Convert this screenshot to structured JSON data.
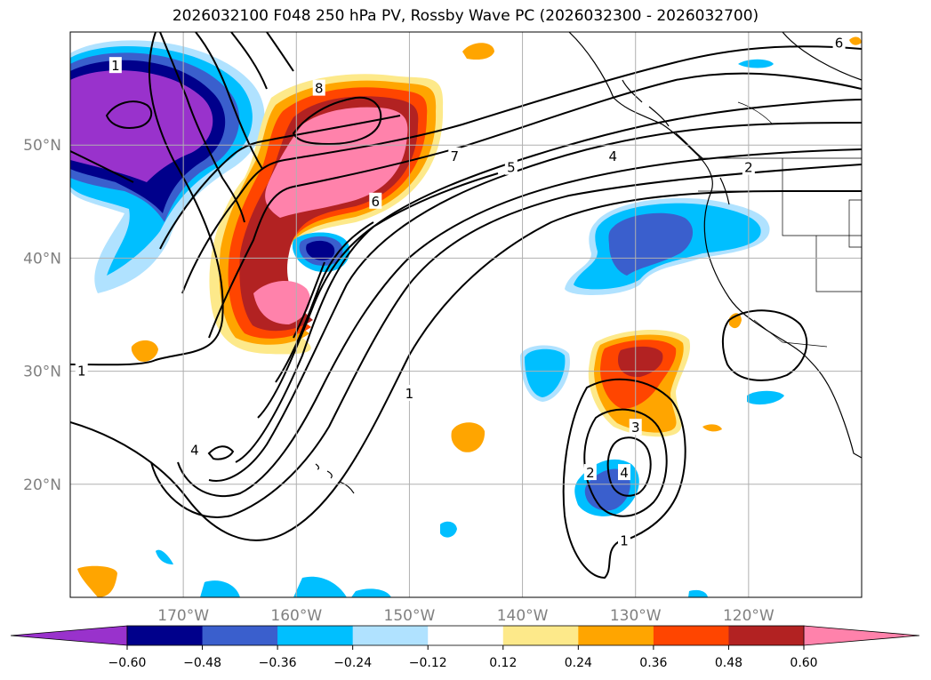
{
  "title": "2026032100 F048 250 hPa PV, Rossby Wave PC (2026032300 - 2026032700)",
  "map": {
    "projection": "plate-carree",
    "lon_range": [
      -180,
      -110
    ],
    "lat_range": [
      10,
      60
    ],
    "lat_labels": [
      "50°N",
      "40°N",
      "30°N",
      "20°N"
    ],
    "lon_labels": [
      "170°W",
      "160°W",
      "150°W",
      "140°W",
      "130°W",
      "120°W"
    ],
    "contour_labels": [
      {
        "text": "1",
        "lon": -176,
        "lat": 57
      },
      {
        "text": "8",
        "lon": -158,
        "lat": 55
      },
      {
        "text": "7",
        "lon": -146,
        "lat": 49
      },
      {
        "text": "6",
        "lon": -153,
        "lat": 45
      },
      {
        "text": "5",
        "lon": -141,
        "lat": 48
      },
      {
        "text": "4",
        "lon": -132,
        "lat": 49
      },
      {
        "text": "2",
        "lon": -120,
        "lat": 48
      },
      {
        "text": "6",
        "lon": -112,
        "lat": 59
      },
      {
        "text": "1",
        "lon": -179,
        "lat": 30
      },
      {
        "text": "1",
        "lon": -150,
        "lat": 28
      },
      {
        "text": "4",
        "lon": -169,
        "lat": 23
      },
      {
        "text": "3",
        "lon": -130,
        "lat": 25
      },
      {
        "text": "2",
        "lon": -134,
        "lat": 21
      },
      {
        "text": "4",
        "lon": -131,
        "lat": 21
      },
      {
        "text": "1",
        "lon": -131,
        "lat": 15
      }
    ]
  },
  "chart_data": {
    "type": "heatmap",
    "title": "2026032100 F048 250 hPa PV, Rossby Wave PC (2026032300 - 2026032700)",
    "variable_shaded": "Rossby Wave PC",
    "variable_contoured": "250 hPa PV",
    "colorbar": {
      "ticks": [
        "−0.60",
        "−0.48",
        "−0.36",
        "−0.24",
        "−0.12",
        "0.12",
        "0.24",
        "0.36",
        "0.48",
        "0.60"
      ],
      "levels": [
        -0.6,
        -0.48,
        -0.36,
        -0.24,
        -0.12,
        0.12,
        0.24,
        0.36,
        0.48,
        0.6
      ],
      "colors": [
        "#9932cc",
        "#00008b",
        "#3a5fcd",
        "#00bfff",
        "#b0e2ff",
        "#ffffff",
        "#fde98a",
        "#ffa500",
        "#ff4500",
        "#b22222",
        "#ff82ab"
      ],
      "extend": "both"
    },
    "features": [
      {
        "name": "negative anomaly NW Pacific",
        "center_lon": -172,
        "center_lat": 52,
        "peak": "< -0.60"
      },
      {
        "name": "positive anomaly Gulf of Alaska",
        "center_lon": -153,
        "center_lat": 49,
        "peak": "> 0.60"
      },
      {
        "name": "positive anomaly central Pacific",
        "center_lon": -159,
        "center_lat": 38,
        "peak": "> 0.60"
      },
      {
        "name": "negative anomaly off California",
        "center_lon": -128,
        "center_lat": 41,
        "peak": "-0.36"
      },
      {
        "name": "positive anomaly subtropics",
        "center_lon": -131,
        "center_lat": 28,
        "peak": "0.48"
      },
      {
        "name": "negative anomaly south of cut-off low",
        "center_lon": -132,
        "center_lat": 20,
        "peak": "-0.36"
      }
    ]
  }
}
